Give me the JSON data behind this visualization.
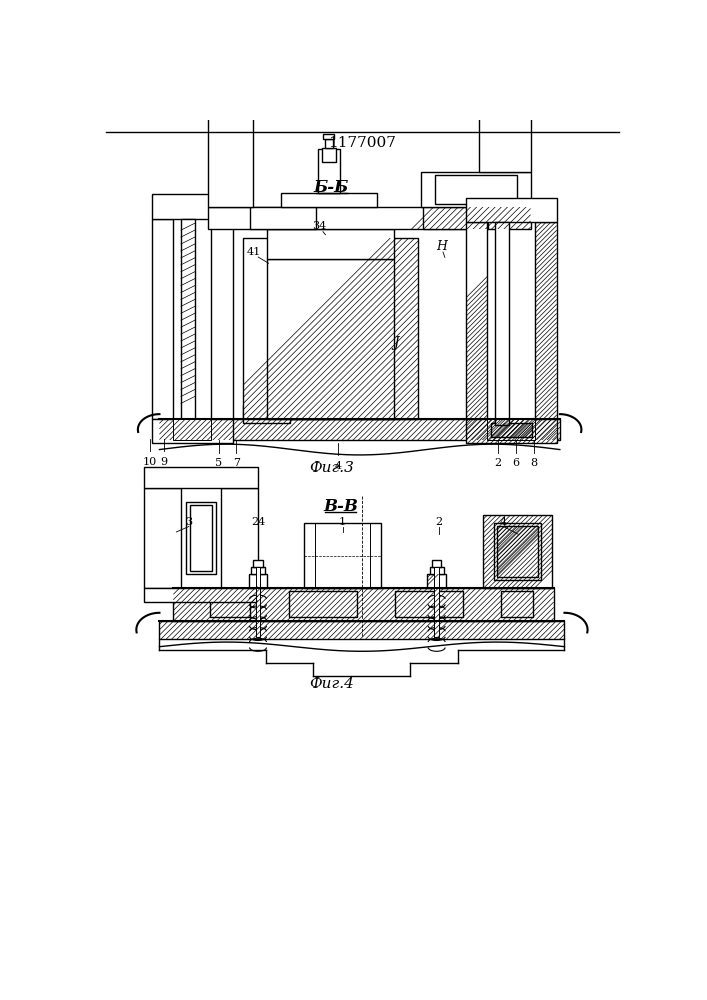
{
  "title": "1177007",
  "fig3_label": "Б-Б",
  "fig3_caption": "Фиг.3",
  "fig4_label": "В-В",
  "fig4_caption": "Фиг.4",
  "bg_color": "#ffffff",
  "line_color": "#000000"
}
